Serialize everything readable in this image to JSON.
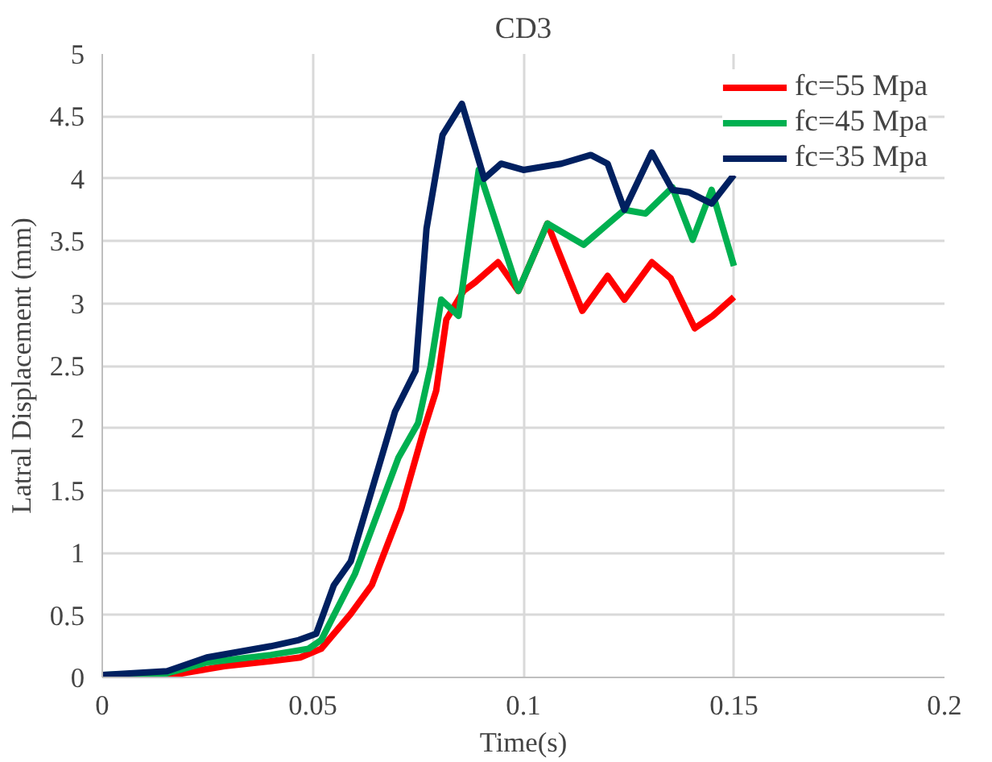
{
  "chart_data": {
    "type": "line",
    "title": "CD3",
    "xlabel": "Time(s)",
    "ylabel": "Latral Displacement (mm)",
    "xlim": [
      0,
      0.2
    ],
    "xticks": [
      0,
      0.05,
      0.1,
      0.15,
      0.2
    ],
    "ylim": [
      0,
      5
    ],
    "yticks": [
      0,
      0.5,
      1,
      1.5,
      2,
      2.5,
      3,
      3.5,
      4,
      4.5,
      5
    ],
    "grid": true,
    "legend": "top right",
    "marker": "none",
    "line_style": "solid",
    "series": [
      {
        "name": "fc=55 Mpa",
        "color": "#ff0000",
        "x": [
          0,
          0.015,
          0.029,
          0.04,
          0.047,
          0.052,
          0.059,
          0.064,
          0.071,
          0.0764,
          0.0793,
          0.0817,
          0.0858,
          0.0886,
          0.094,
          0.0988,
          0.1057,
          0.114,
          0.12,
          0.124,
          0.1305,
          0.135,
          0.1407,
          0.145,
          0.15
        ],
        "values": [
          0,
          0.01,
          0.09,
          0.13,
          0.16,
          0.23,
          0.51,
          0.74,
          1.35,
          1.99,
          2.3,
          2.87,
          3.1,
          3.17,
          3.33,
          3.1,
          3.64,
          2.94,
          3.22,
          3.03,
          3.33,
          3.2,
          2.8,
          2.9,
          3.05
        ]
      },
      {
        "name": "fc=45 Mpa",
        "color": "#00b050",
        "x": [
          0,
          0.015,
          0.0248,
          0.04,
          0.049,
          0.052,
          0.06,
          0.0703,
          0.075,
          0.078,
          0.0805,
          0.0846,
          0.0894,
          0.0988,
          0.1057,
          0.1143,
          0.124,
          0.129,
          0.1354,
          0.1402,
          0.1447,
          0.15
        ],
        "values": [
          0.02,
          0.03,
          0.12,
          0.18,
          0.23,
          0.3,
          0.83,
          1.76,
          2.04,
          2.5,
          3.03,
          2.9,
          4.07,
          3.1,
          3.64,
          3.47,
          3.75,
          3.72,
          3.93,
          3.51,
          3.91,
          3.3
        ]
      },
      {
        "name": "fc=35 Mpa",
        "color": "#002060",
        "x": [
          0,
          0.0154,
          0.0248,
          0.04,
          0.0467,
          0.0508,
          0.055,
          0.059,
          0.0695,
          0.0744,
          0.077,
          0.0808,
          0.0854,
          0.0907,
          0.0947,
          0.1,
          0.109,
          0.116,
          0.12,
          0.124,
          0.1305,
          0.1354,
          0.1394,
          0.1447,
          0.15
        ],
        "values": [
          0.02,
          0.05,
          0.16,
          0.25,
          0.3,
          0.35,
          0.74,
          0.93,
          2.13,
          2.46,
          3.6,
          4.35,
          4.6,
          4.0,
          4.12,
          4.07,
          4.12,
          4.19,
          4.12,
          3.75,
          4.21,
          3.91,
          3.89,
          3.8,
          4.03
        ]
      }
    ]
  }
}
